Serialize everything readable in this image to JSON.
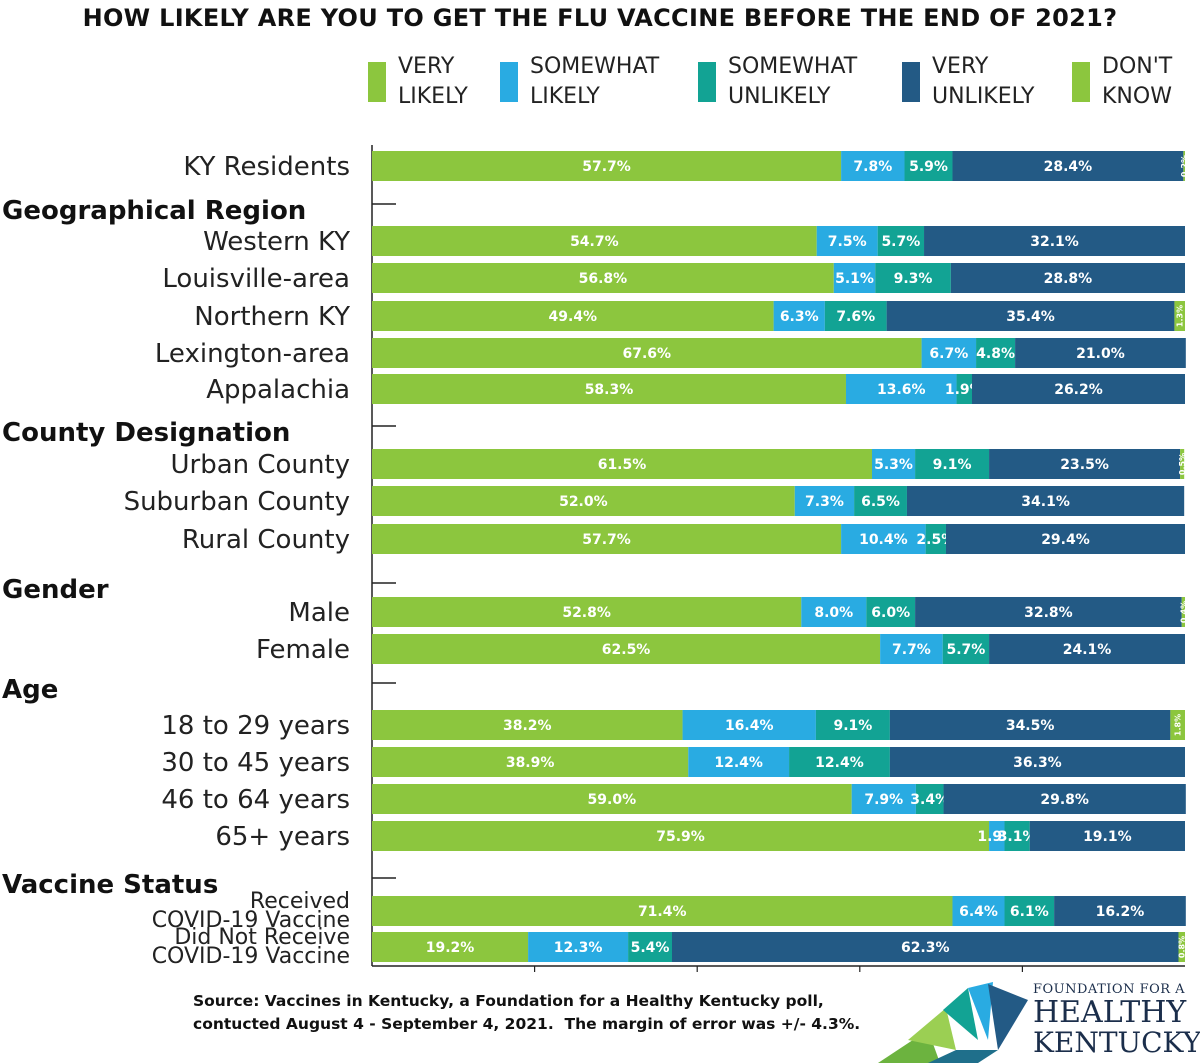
{
  "title": "HOW LIKELY ARE YOU TO GET THE FLU VACCINE BEFORE THE END OF 2021?",
  "legend": [
    {
      "label": "VERY\nLIKELY",
      "color": "#8cc63e"
    },
    {
      "label": "SOMEWHAT\nLIKELY",
      "color": "#29abe2"
    },
    {
      "label": "SOMEWHAT\nUNLIKELY",
      "color": "#12a394"
    },
    {
      "label": "VERY\nUNLIKELY",
      "color": "#235a85"
    },
    {
      "label": "DON'T\nKNOW",
      "color": "#8cc63e"
    }
  ],
  "chart_data": {
    "type": "bar",
    "orientation": "horizontal",
    "stacked": true,
    "title": "HOW LIKELY ARE YOU TO GET THE FLU VACCINE BEFORE THE END OF 2021?",
    "xlim": [
      0,
      100
    ],
    "series": [
      {
        "name": "VERY LIKELY",
        "color": "#8cc63e"
      },
      {
        "name": "SOMEWHAT LIKELY",
        "color": "#29abe2"
      },
      {
        "name": "SOMEWHAT UNLIKELY",
        "color": "#12a394"
      },
      {
        "name": "VERY UNLIKELY",
        "color": "#235a85"
      },
      {
        "name": "DON'T KNOW",
        "color": "#8cc63e"
      }
    ],
    "groups": [
      {
        "name": "",
        "rows": [
          {
            "label": "KY Residents",
            "values": [
              57.7,
              7.8,
              5.9,
              28.4,
              0.2
            ],
            "labels": [
              "57.7%",
              "7.8%",
              "5.9%",
              "28.4%",
              "0.2%"
            ]
          }
        ]
      },
      {
        "name": "Geographical Region",
        "rows": [
          {
            "label": "Western KY",
            "values": [
              54.7,
              7.5,
              5.7,
              32.1,
              0
            ],
            "labels": [
              "54.7%",
              "7.5%",
              "5.7%",
              "32.1%",
              ""
            ]
          },
          {
            "label": "Louisville-area",
            "values": [
              56.8,
              5.1,
              9.3,
              28.8,
              0
            ],
            "labels": [
              "56.8%",
              "5.1%",
              "9.3%",
              "28.8%",
              ""
            ]
          },
          {
            "label": "Northern KY",
            "values": [
              49.4,
              6.3,
              7.6,
              35.4,
              1.3
            ],
            "labels": [
              "49.4%",
              "6.3%",
              "7.6%",
              "35.4%",
              "1.3%"
            ]
          },
          {
            "label": "Lexington-area",
            "values": [
              67.6,
              6.7,
              4.8,
              21.0,
              0
            ],
            "labels": [
              "67.6%",
              "6.7%",
              "4.8%",
              "21.0%",
              ""
            ]
          },
          {
            "label": "Appalachia",
            "values": [
              58.3,
              13.6,
              1.9,
              26.2,
              0
            ],
            "labels": [
              "58.3%",
              "13.6%",
              "1.9%",
              "26.2%",
              ""
            ]
          }
        ]
      },
      {
        "name": "County Designation",
        "rows": [
          {
            "label": "Urban County",
            "values": [
              61.5,
              5.3,
              9.1,
              23.5,
              0.5
            ],
            "labels": [
              "61.5%",
              "5.3%",
              "9.1%",
              "23.5%",
              "0.5%"
            ]
          },
          {
            "label": "Suburban County",
            "values": [
              52.0,
              7.3,
              6.5,
              34.1,
              0
            ],
            "labels": [
              "52.0%",
              "7.3%",
              "6.5%",
              "34.1%",
              ""
            ]
          },
          {
            "label": "Rural County",
            "values": [
              57.7,
              10.4,
              2.5,
              29.4,
              0
            ],
            "labels": [
              "57.7%",
              "10.4%",
              "2.5%",
              "29.4%",
              ""
            ]
          }
        ]
      },
      {
        "name": "Gender",
        "rows": [
          {
            "label": "Male",
            "values": [
              52.8,
              8.0,
              6.0,
              32.8,
              0.4
            ],
            "labels": [
              "52.8%",
              "8.0%",
              "6.0%",
              "32.8%",
              "0.4%"
            ]
          },
          {
            "label": "Female",
            "values": [
              62.5,
              7.7,
              5.7,
              24.1,
              0
            ],
            "labels": [
              "62.5%",
              "7.7%",
              "5.7%",
              "24.1%",
              ""
            ]
          }
        ]
      },
      {
        "name": "Age",
        "rows": [
          {
            "label": "18 to 29 years",
            "values": [
              38.2,
              16.4,
              9.1,
              34.5,
              1.8
            ],
            "labels": [
              "38.2%",
              "16.4%",
              "9.1%",
              "34.5%",
              "1.8%"
            ]
          },
          {
            "label": "30 to 45 years",
            "values": [
              38.9,
              12.4,
              12.4,
              36.3,
              0
            ],
            "labels": [
              "38.9%",
              "12.4%",
              "12.4%",
              "36.3%",
              ""
            ]
          },
          {
            "label": "46 to 64 years",
            "values": [
              59.0,
              7.9,
              3.4,
              29.8,
              0
            ],
            "labels": [
              "59.0%",
              "7.9%",
              "3.4%",
              "29.8%",
              ""
            ]
          },
          {
            "label": "65+ years",
            "values": [
              75.9,
              1.9,
              3.1,
              19.1,
              0
            ],
            "labels": [
              "75.9%",
              "1.9%",
              "3.1%",
              "19.1%",
              ""
            ]
          }
        ]
      },
      {
        "name": "Vaccine Status",
        "rows": [
          {
            "label": "Received\nCOVID-19 Vaccine",
            "values": [
              71.4,
              6.4,
              6.1,
              16.2,
              0
            ],
            "labels": [
              "71.4%",
              "6.4%",
              "6.1%",
              "16.2%",
              ""
            ]
          },
          {
            "label": "Did Not Receive\nCOVID-19 Vaccine",
            "values": [
              19.2,
              12.3,
              5.4,
              62.3,
              0.8
            ],
            "labels": [
              "19.2%",
              "12.3%",
              "5.4%",
              "62.3%",
              "0.8%"
            ]
          }
        ]
      }
    ]
  },
  "footer": {
    "source": "Source: Vaccines in Kentucky, a Foundation for a Healthy Kentucky poll,\ncontucted August 4 - September 4, 2021.  The margin of error was +/- 4.3%."
  },
  "logo": {
    "line1": "FOUNDATION FOR A",
    "line2": "HEALTHY",
    "line3": "KENTUCKY",
    "colors": [
      "#6cb33f",
      "#9bcf53",
      "#12a394",
      "#29abe2",
      "#235a85",
      "#1f6f8b"
    ]
  }
}
